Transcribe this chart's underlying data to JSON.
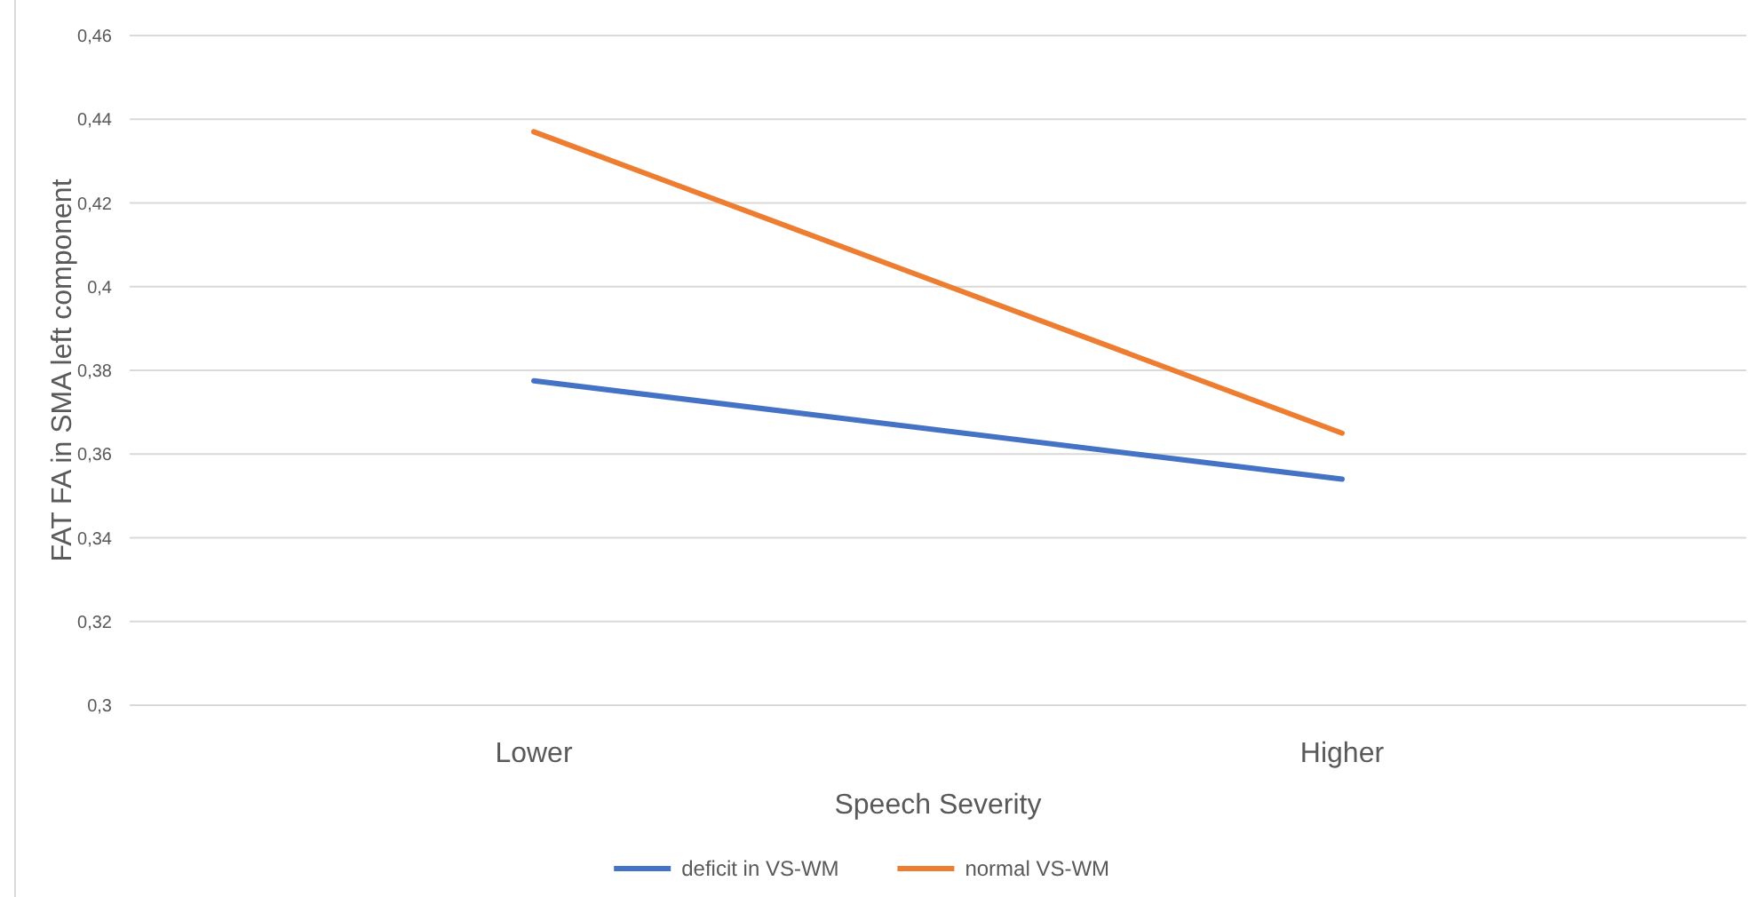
{
  "chart_data": {
    "type": "line",
    "categories": [
      "Lower",
      "Higher"
    ],
    "xlabel": "Speech Severity",
    "ylabel": "FAT FA in SMA left component",
    "series": [
      {
        "name": "deficit in VS-WM",
        "color": "#4472c4",
        "values": [
          0.3775,
          0.354
        ]
      },
      {
        "name": "normal VS-WM",
        "color": "#ed7d31",
        "values": [
          0.437,
          0.365
        ]
      }
    ],
    "ylim": [
      0.3,
      0.46
    ],
    "yticks": [
      {
        "value": 0.3,
        "label": "0,3"
      },
      {
        "value": 0.32,
        "label": "0,32"
      },
      {
        "value": 0.34,
        "label": "0,34"
      },
      {
        "value": 0.36,
        "label": "0,36"
      },
      {
        "value": 0.38,
        "label": "0,38"
      },
      {
        "value": 0.4,
        "label": "0,4"
      },
      {
        "value": 0.42,
        "label": "0,42"
      },
      {
        "value": 0.44,
        "label": "0,44"
      },
      {
        "value": 0.46,
        "label": "0,46"
      }
    ],
    "grid": "y",
    "legend": "bottom",
    "marker": "none",
    "line_style": "solid"
  }
}
